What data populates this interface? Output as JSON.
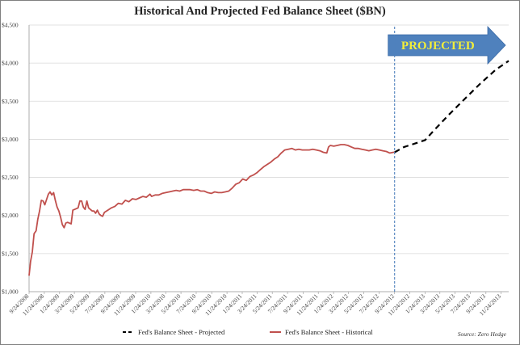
{
  "chart_data": {
    "type": "line",
    "title": "Historical And Projected Fed Balance Sheet ($BN)",
    "ylim": [
      1000,
      4500
    ],
    "yticks": [
      1000,
      1500,
      2000,
      2500,
      3000,
      3500,
      4000,
      4500
    ],
    "ytick_labels": [
      "$1,000",
      "$1,500",
      "$2,000",
      "$2,500",
      "$3,000",
      "$3,500",
      "$4,000",
      "$4,500"
    ],
    "xlim": [
      "2008-09-24",
      "2013-12-24"
    ],
    "xticks": [
      "2008-09-24",
      "2008-11-24",
      "2009-01-24",
      "2009-03-24",
      "2009-05-24",
      "2009-07-24",
      "2009-09-24",
      "2009-11-24",
      "2010-01-24",
      "2010-03-24",
      "2010-05-24",
      "2010-07-24",
      "2010-09-24",
      "2010-11-24",
      "2011-01-24",
      "2011-03-24",
      "2011-05-24",
      "2011-07-24",
      "2011-09-24",
      "2011-11-24",
      "2012-01-24",
      "2012-03-24",
      "2012-05-24",
      "2012-07-24",
      "2012-09-24",
      "2012-11-24",
      "2013-01-24",
      "2013-03-24",
      "2013-05-24",
      "2013-07-24",
      "2013-09-24",
      "2013-11-24"
    ],
    "xtick_labels": [
      "9/24/2008",
      "11/24/2008",
      "1/24/2009",
      "3/24/2009",
      "5/24/2009",
      "7/24/2009",
      "9/24/2009",
      "11/24/2009",
      "1/24/2010",
      "3/24/2010",
      "5/24/2010",
      "7/24/2010",
      "9/24/2010",
      "11/24/2010",
      "1/24/2011",
      "3/24/2011",
      "5/24/2011",
      "7/24/2011",
      "9/24/2011",
      "11/24/2011",
      "1/24/2012",
      "3/24/2012",
      "5/24/2012",
      "7/24/2012",
      "9/24/2012",
      "11/24/2012",
      "1/24/2013",
      "3/24/2013",
      "5/24/2013",
      "7/24/2013",
      "9/24/2013",
      "11/24/2013"
    ],
    "divider_x": "2012-09-24",
    "grid": "horizontal",
    "legend_position": "bottom",
    "series": [
      {
        "name": "Fed's Balance Sheet - Projected",
        "color": "#000000",
        "style": "dashed",
        "points": [
          [
            "2012-09-24",
            2830
          ],
          [
            "2012-11-01",
            2900
          ],
          [
            "2012-12-15",
            2945
          ],
          [
            "2013-01-24",
            2990
          ],
          [
            "2013-03-01",
            3120
          ],
          [
            "2013-05-01",
            3330
          ],
          [
            "2013-07-01",
            3530
          ],
          [
            "2013-09-01",
            3730
          ],
          [
            "2013-11-01",
            3910
          ],
          [
            "2013-12-24",
            4030
          ]
        ]
      },
      {
        "name": "Fed's Balance Sheet - Historical",
        "color": "#c0504d",
        "style": "solid",
        "points": [
          [
            "2008-09-24",
            1210
          ],
          [
            "2008-09-30",
            1400
          ],
          [
            "2008-10-07",
            1520
          ],
          [
            "2008-10-14",
            1760
          ],
          [
            "2008-10-22",
            1800
          ],
          [
            "2008-10-29",
            1950
          ],
          [
            "2008-11-05",
            2060
          ],
          [
            "2008-11-12",
            2200
          ],
          [
            "2008-11-19",
            2190
          ],
          [
            "2008-11-26",
            2140
          ],
          [
            "2008-12-03",
            2210
          ],
          [
            "2008-12-10",
            2280
          ],
          [
            "2008-12-17",
            2310
          ],
          [
            "2008-12-24",
            2270
          ],
          [
            "2008-12-31",
            2300
          ],
          [
            "2009-01-07",
            2200
          ],
          [
            "2009-01-14",
            2110
          ],
          [
            "2009-01-21",
            2060
          ],
          [
            "2009-01-28",
            1980
          ],
          [
            "2009-02-04",
            1880
          ],
          [
            "2009-02-11",
            1840
          ],
          [
            "2009-02-18",
            1900
          ],
          [
            "2009-02-25",
            1910
          ],
          [
            "2009-03-04",
            1900
          ],
          [
            "2009-03-11",
            1890
          ],
          [
            "2009-03-18",
            2070
          ],
          [
            "2009-03-25",
            2080
          ],
          [
            "2009-04-01",
            2090
          ],
          [
            "2009-04-08",
            2100
          ],
          [
            "2009-04-15",
            2190
          ],
          [
            "2009-04-22",
            2190
          ],
          [
            "2009-04-29",
            2110
          ],
          [
            "2009-05-06",
            2080
          ],
          [
            "2009-05-13",
            2190
          ],
          [
            "2009-05-20",
            2100
          ],
          [
            "2009-05-27",
            2080
          ],
          [
            "2009-06-03",
            2060
          ],
          [
            "2009-06-10",
            2060
          ],
          [
            "2009-06-17",
            2030
          ],
          [
            "2009-06-24",
            2070
          ],
          [
            "2009-07-01",
            2020
          ],
          [
            "2009-07-08",
            2000
          ],
          [
            "2009-07-15",
            1990
          ],
          [
            "2009-07-22",
            2040
          ],
          [
            "2009-08-05",
            2070
          ],
          [
            "2009-08-19",
            2100
          ],
          [
            "2009-09-02",
            2120
          ],
          [
            "2009-09-16",
            2160
          ],
          [
            "2009-09-30",
            2150
          ],
          [
            "2009-10-14",
            2200
          ],
          [
            "2009-10-28",
            2180
          ],
          [
            "2009-11-11",
            2220
          ],
          [
            "2009-11-25",
            2210
          ],
          [
            "2009-12-09",
            2230
          ],
          [
            "2009-12-23",
            2250
          ],
          [
            "2010-01-06",
            2240
          ],
          [
            "2010-01-20",
            2280
          ],
          [
            "2010-01-27",
            2250
          ],
          [
            "2010-02-10",
            2270
          ],
          [
            "2010-02-24",
            2270
          ],
          [
            "2010-03-10",
            2290
          ],
          [
            "2010-03-24",
            2300
          ],
          [
            "2010-04-07",
            2310
          ],
          [
            "2010-04-21",
            2320
          ],
          [
            "2010-05-05",
            2330
          ],
          [
            "2010-05-19",
            2320
          ],
          [
            "2010-06-02",
            2340
          ],
          [
            "2010-06-16",
            2340
          ],
          [
            "2010-06-30",
            2340
          ],
          [
            "2010-07-14",
            2330
          ],
          [
            "2010-07-28",
            2340
          ],
          [
            "2010-08-11",
            2320
          ],
          [
            "2010-08-25",
            2320
          ],
          [
            "2010-09-08",
            2300
          ],
          [
            "2010-09-22",
            2290
          ],
          [
            "2010-10-06",
            2310
          ],
          [
            "2010-10-20",
            2300
          ],
          [
            "2010-11-03",
            2300
          ],
          [
            "2010-11-17",
            2310
          ],
          [
            "2010-12-01",
            2320
          ],
          [
            "2010-12-15",
            2360
          ],
          [
            "2010-12-29",
            2410
          ],
          [
            "2011-01-12",
            2430
          ],
          [
            "2011-01-26",
            2480
          ],
          [
            "2011-02-09",
            2460
          ],
          [
            "2011-02-23",
            2510
          ],
          [
            "2011-03-09",
            2530
          ],
          [
            "2011-03-23",
            2560
          ],
          [
            "2011-04-06",
            2600
          ],
          [
            "2011-04-20",
            2640
          ],
          [
            "2011-05-04",
            2670
          ],
          [
            "2011-05-18",
            2700
          ],
          [
            "2011-06-01",
            2740
          ],
          [
            "2011-06-15",
            2770
          ],
          [
            "2011-06-29",
            2820
          ],
          [
            "2011-07-13",
            2860
          ],
          [
            "2011-07-27",
            2870
          ],
          [
            "2011-08-10",
            2880
          ],
          [
            "2011-08-24",
            2860
          ],
          [
            "2011-09-07",
            2870
          ],
          [
            "2011-09-21",
            2860
          ],
          [
            "2011-10-05",
            2860
          ],
          [
            "2011-10-19",
            2860
          ],
          [
            "2011-11-02",
            2870
          ],
          [
            "2011-11-16",
            2860
          ],
          [
            "2011-11-30",
            2850
          ],
          [
            "2011-12-14",
            2830
          ],
          [
            "2011-12-28",
            2820
          ],
          [
            "2012-01-04",
            2900
          ],
          [
            "2012-01-11",
            2920
          ],
          [
            "2012-01-25",
            2910
          ],
          [
            "2012-02-08",
            2920
          ],
          [
            "2012-02-22",
            2930
          ],
          [
            "2012-03-07",
            2930
          ],
          [
            "2012-03-21",
            2920
          ],
          [
            "2012-04-04",
            2900
          ],
          [
            "2012-04-18",
            2880
          ],
          [
            "2012-05-02",
            2880
          ],
          [
            "2012-05-16",
            2870
          ],
          [
            "2012-05-30",
            2860
          ],
          [
            "2012-06-13",
            2850
          ],
          [
            "2012-06-27",
            2860
          ],
          [
            "2012-07-11",
            2870
          ],
          [
            "2012-07-25",
            2860
          ],
          [
            "2012-08-08",
            2850
          ],
          [
            "2012-08-22",
            2840
          ],
          [
            "2012-09-05",
            2820
          ],
          [
            "2012-09-19",
            2830
          ],
          [
            "2012-09-24",
            2830
          ]
        ]
      }
    ],
    "annotation": {
      "text": "PROJECTED",
      "color": "#4f81bd",
      "text_color": "#f2ee3a"
    },
    "source": "Source: Zero Hedge"
  },
  "icons": {
    "banner": "right-arrow-icon"
  }
}
